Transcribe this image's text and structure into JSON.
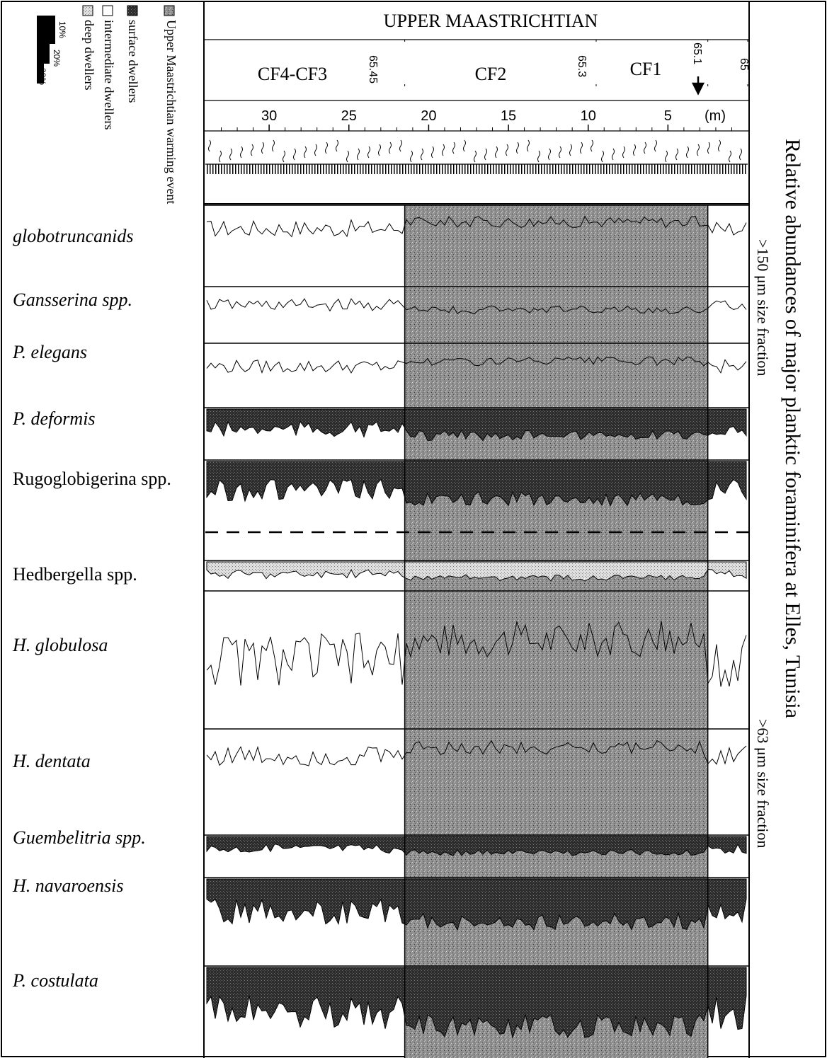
{
  "title": "Relative abundances of major planktic foraminifera at Elles, Tunisia",
  "subtitles": {
    "upper": ">150 μm size fraction",
    "lower": ">63 μm size fraction"
  },
  "stage": "UPPER MAASTRICHTIAN",
  "zones": [
    "CF4-CF3",
    "CF2",
    "CF1"
  ],
  "ages": [
    "65.45",
    "65.3",
    "65.1",
    "65"
  ],
  "depth_ticks": [
    "30",
    "25",
    "20",
    "15",
    "10",
    "5"
  ],
  "depth_unit": "(m)",
  "legend": {
    "items": [
      "Upper Maastrichtian warming event",
      "surface dwellers",
      "intermediate dwellers",
      "deep dwellers"
    ],
    "scale": [
      "10%",
      "20%",
      "30%"
    ]
  },
  "taxa": [
    {
      "name": "globotruncanids",
      "italic": true
    },
    {
      "name": "Gansserina spp.",
      "italic": true
    },
    {
      "name": "P. elegans",
      "italic": true
    },
    {
      "name": "P. deformis",
      "italic": true
    },
    {
      "name": "Rugoglobigerina spp.",
      "italic": false
    },
    {
      "name": "Hedbergella spp.",
      "italic": false
    },
    {
      "name": "H. globulosa",
      "italic": true
    },
    {
      "name": "H. dentata",
      "italic": true
    },
    {
      "name": "Guembelitria spp.",
      "italic": true
    },
    {
      "name": "H. navaroensis",
      "italic": true
    },
    {
      "name": "P. costulata",
      "italic": true
    }
  ],
  "colors": {
    "ink": "#000000",
    "event_shading": "#9a9a9a",
    "surface": "#3a3a3a",
    "intermediate": "#c8c8c8"
  },
  "chart_data": {
    "type": "area",
    "x_axis": {
      "label": "(m)",
      "range": [
        34,
        0
      ],
      "reversed": true
    },
    "warming_event_interval_m": [
      21.5,
      2.5
    ],
    "zone_boundaries": [
      {
        "age": "65.45",
        "depth_m": 21.5
      },
      {
        "age": "65.3",
        "depth_m": 9.5
      },
      {
        "age": "65.1",
        "depth_m": 2.5
      },
      {
        "age": "65",
        "depth_m": 0
      }
    ],
    "series": [
      {
        "name": "globotruncanids",
        "group": "deep dwellers"
      },
      {
        "name": "Gansserina spp.",
        "group": "deep dwellers"
      },
      {
        "name": "P. elegans",
        "group": "deep dwellers"
      },
      {
        "name": "P. deformis",
        "group": "surface dwellers"
      },
      {
        "name": "Rugoglobigerina spp.",
        "group": "surface dwellers"
      },
      {
        "name": "Hedbergella spp.",
        "group": "intermediate dwellers"
      },
      {
        "name": "H. globulosa",
        "group": "deep dwellers"
      },
      {
        "name": "H. dentata",
        "group": "deep dwellers"
      },
      {
        "name": "Guembelitria spp.",
        "group": "surface dwellers"
      },
      {
        "name": "H. navaroensis",
        "group": "surface dwellers"
      },
      {
        "name": "P. costulata",
        "group": "surface dwellers"
      }
    ]
  }
}
